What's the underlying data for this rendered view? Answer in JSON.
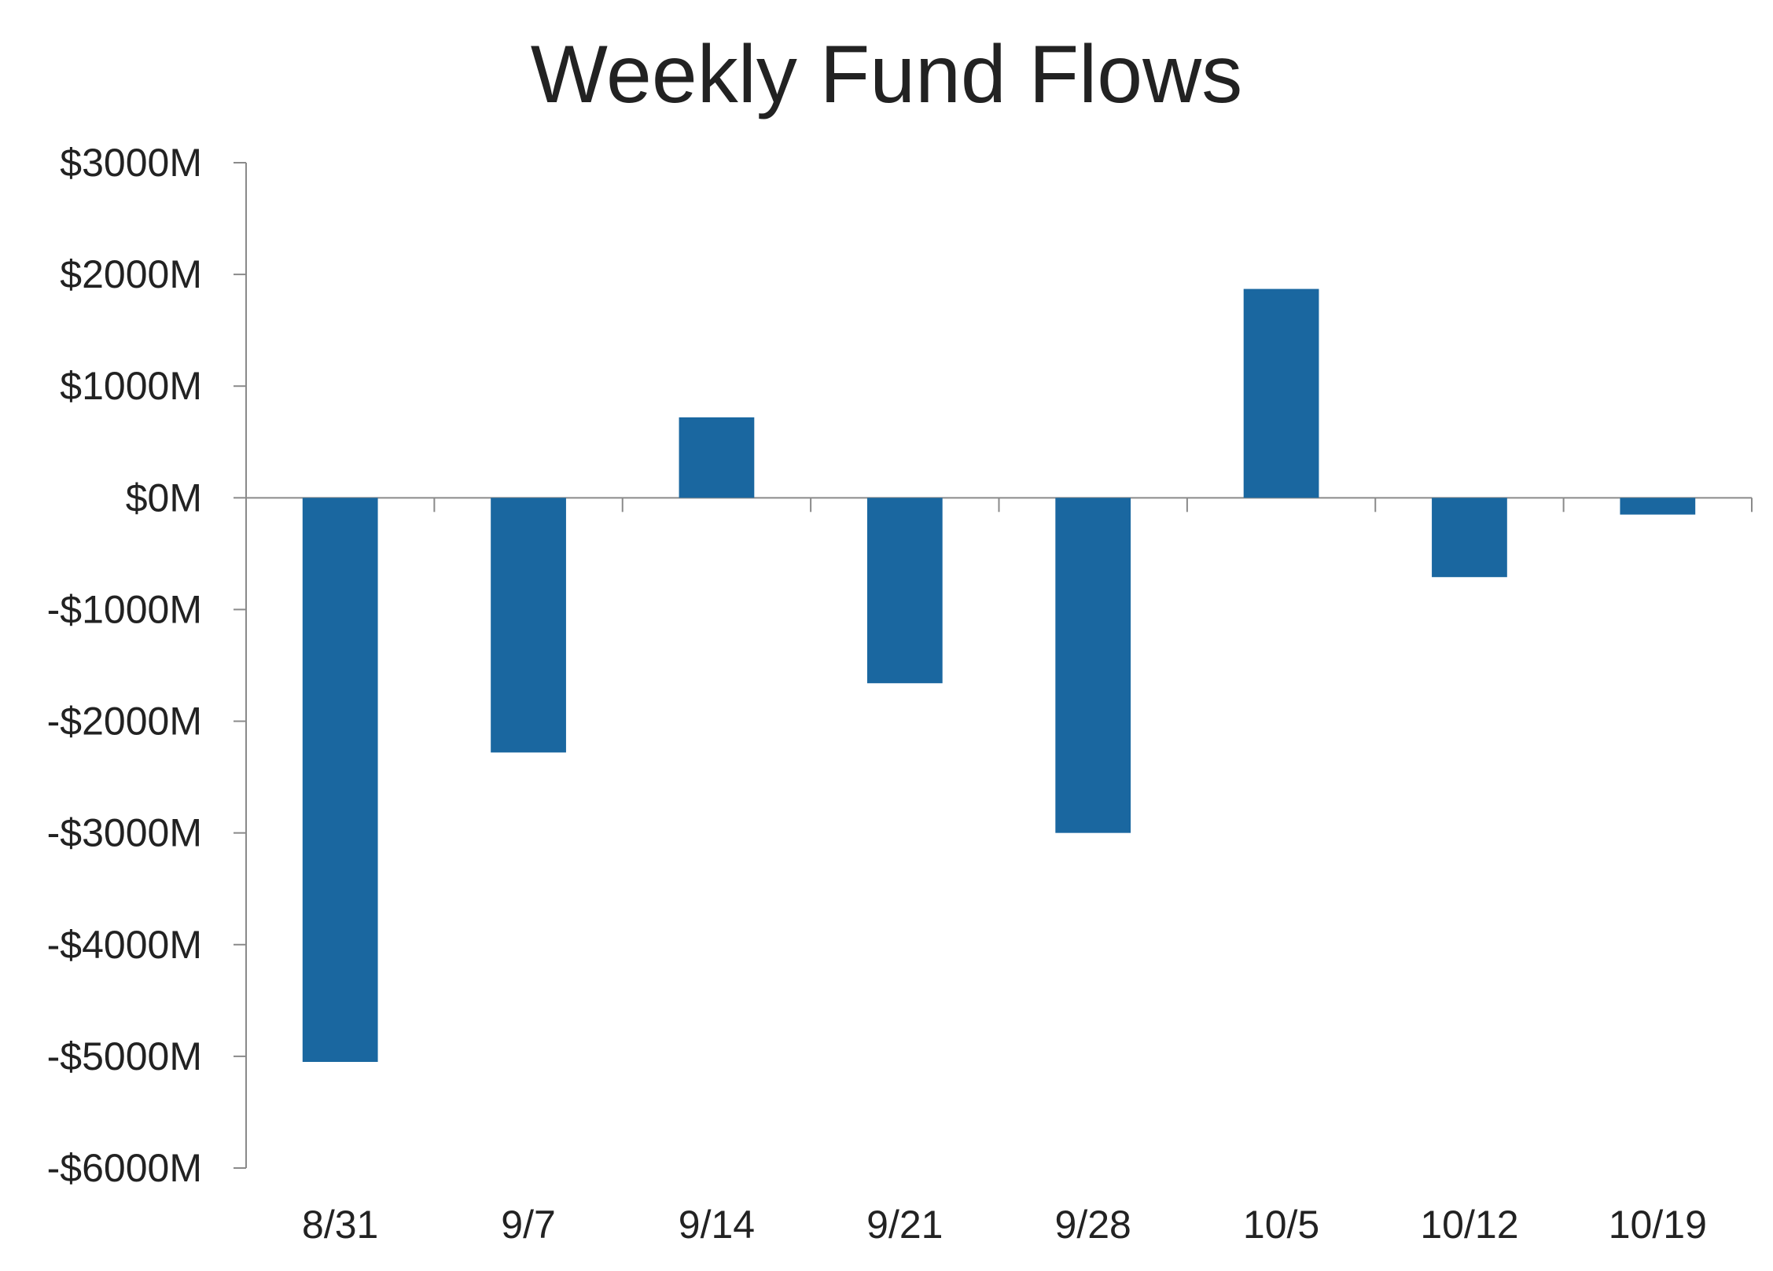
{
  "chart_data": {
    "type": "bar",
    "title": "Weekly Fund Flows",
    "categories": [
      "8/31",
      "9/7",
      "9/14",
      "9/21",
      "9/28",
      "10/5",
      "10/12",
      "10/19"
    ],
    "values": [
      -5050,
      -2280,
      720,
      -1660,
      -3000,
      1870,
      -710,
      -150
    ],
    "ylim": [
      -6000,
      3000
    ],
    "yticks": [
      3000,
      2000,
      1000,
      0,
      -1000,
      -2000,
      -3000,
      -4000,
      -5000,
      -6000
    ],
    "ytick_labels": [
      "$3000M",
      "$2000M",
      "$1000M",
      "$0M",
      "-$1000M",
      "-$2000M",
      "-$3000M",
      "-$4000M",
      "-$5000M",
      "-$6000M"
    ],
    "xlabel": "",
    "ylabel": "",
    "grid": false,
    "legend": "none",
    "colors": {
      "bar": "#1a67a0",
      "axis": "#8a8a8a",
      "text": "#222222"
    }
  }
}
